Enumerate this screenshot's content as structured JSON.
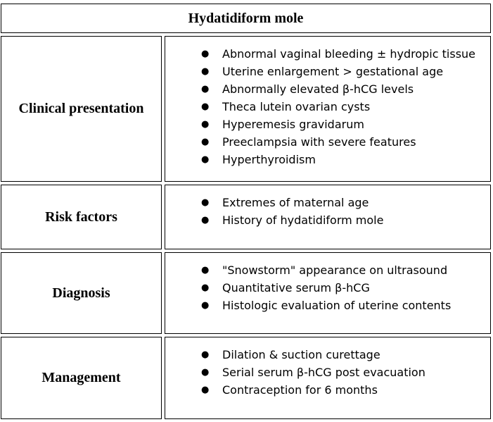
{
  "title": "Hydatidiform mole",
  "rows": [
    {
      "label": "Clinical presentation",
      "items": [
        "Abnormal vaginal bleeding ± hydropic tissue",
        "Uterine enlargement > gestational age",
        "Abnormally elevated β-hCG levels",
        "Theca lutein ovarian cysts",
        "Hyperemesis gravidarum",
        "Preeclampsia with severe features",
        "Hyperthyroidism"
      ]
    },
    {
      "label": "Risk factors",
      "items": [
        "Extremes of maternal age",
        "History of hydatidiform mole"
      ]
    },
    {
      "label": "Diagnosis",
      "items": [
        "\"Snowstorm\" appearance on ultrasound",
        "Quantitative serum β-hCG",
        "Histologic evaluation of uterine contents"
      ]
    },
    {
      "label": "Management",
      "items": [
        "Dilation & suction curettage",
        "Serial serum β-hCG post evacuation",
        "Contraception for 6 months"
      ]
    }
  ]
}
